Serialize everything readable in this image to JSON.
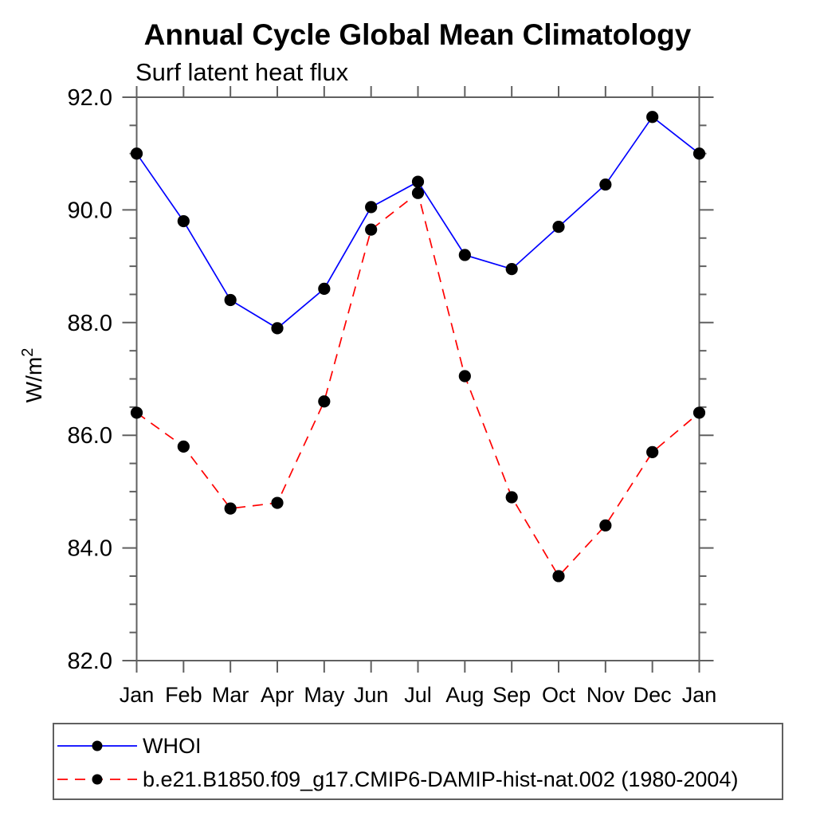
{
  "colors": {
    "background": "#ffffff",
    "axis": "#606060",
    "text": "#000000",
    "whoi_line": "#0000ff",
    "model_line": "#ff0000",
    "marker": "#000000"
  },
  "chart_data": {
    "type": "line",
    "title": "Annual Cycle Global Mean Climatology",
    "subtitle": "Surf latent heat flux",
    "ylabel": "W/m²",
    "ylabel_base": "W/m",
    "ylabel_sup": "2",
    "xlabel": "",
    "categories": [
      "Jan",
      "Feb",
      "Mar",
      "Apr",
      "May",
      "Jun",
      "Jul",
      "Aug",
      "Sep",
      "Oct",
      "Nov",
      "Dec",
      "Jan"
    ],
    "ylim": [
      82.0,
      92.0
    ],
    "ytick_major_interval": 2.0,
    "ytick_minor_interval": 0.5,
    "ytick_labels": [
      "82.0",
      "84.0",
      "86.0",
      "88.0",
      "90.0",
      "92.0"
    ],
    "grid": false,
    "legend_position": "bottom-left-box",
    "series": [
      {
        "name": "WHOI",
        "color": "#0000ff",
        "line_style": "solid",
        "marker": "circle",
        "marker_color": "#000000",
        "values": [
          91.0,
          89.8,
          88.4,
          87.9,
          88.6,
          90.05,
          90.5,
          89.2,
          88.95,
          89.7,
          90.45,
          91.65,
          91.0
        ]
      },
      {
        "name": "b.e21.B1850.f09_g17.CMIP6-DAMIP-hist-nat.002 (1980-2004)",
        "color": "#ff0000",
        "line_style": "dashed",
        "marker": "circle",
        "marker_color": "#000000",
        "values": [
          86.4,
          85.8,
          84.7,
          84.8,
          86.6,
          89.65,
          90.3,
          87.05,
          84.9,
          83.5,
          84.4,
          85.7,
          86.4
        ]
      }
    ]
  }
}
